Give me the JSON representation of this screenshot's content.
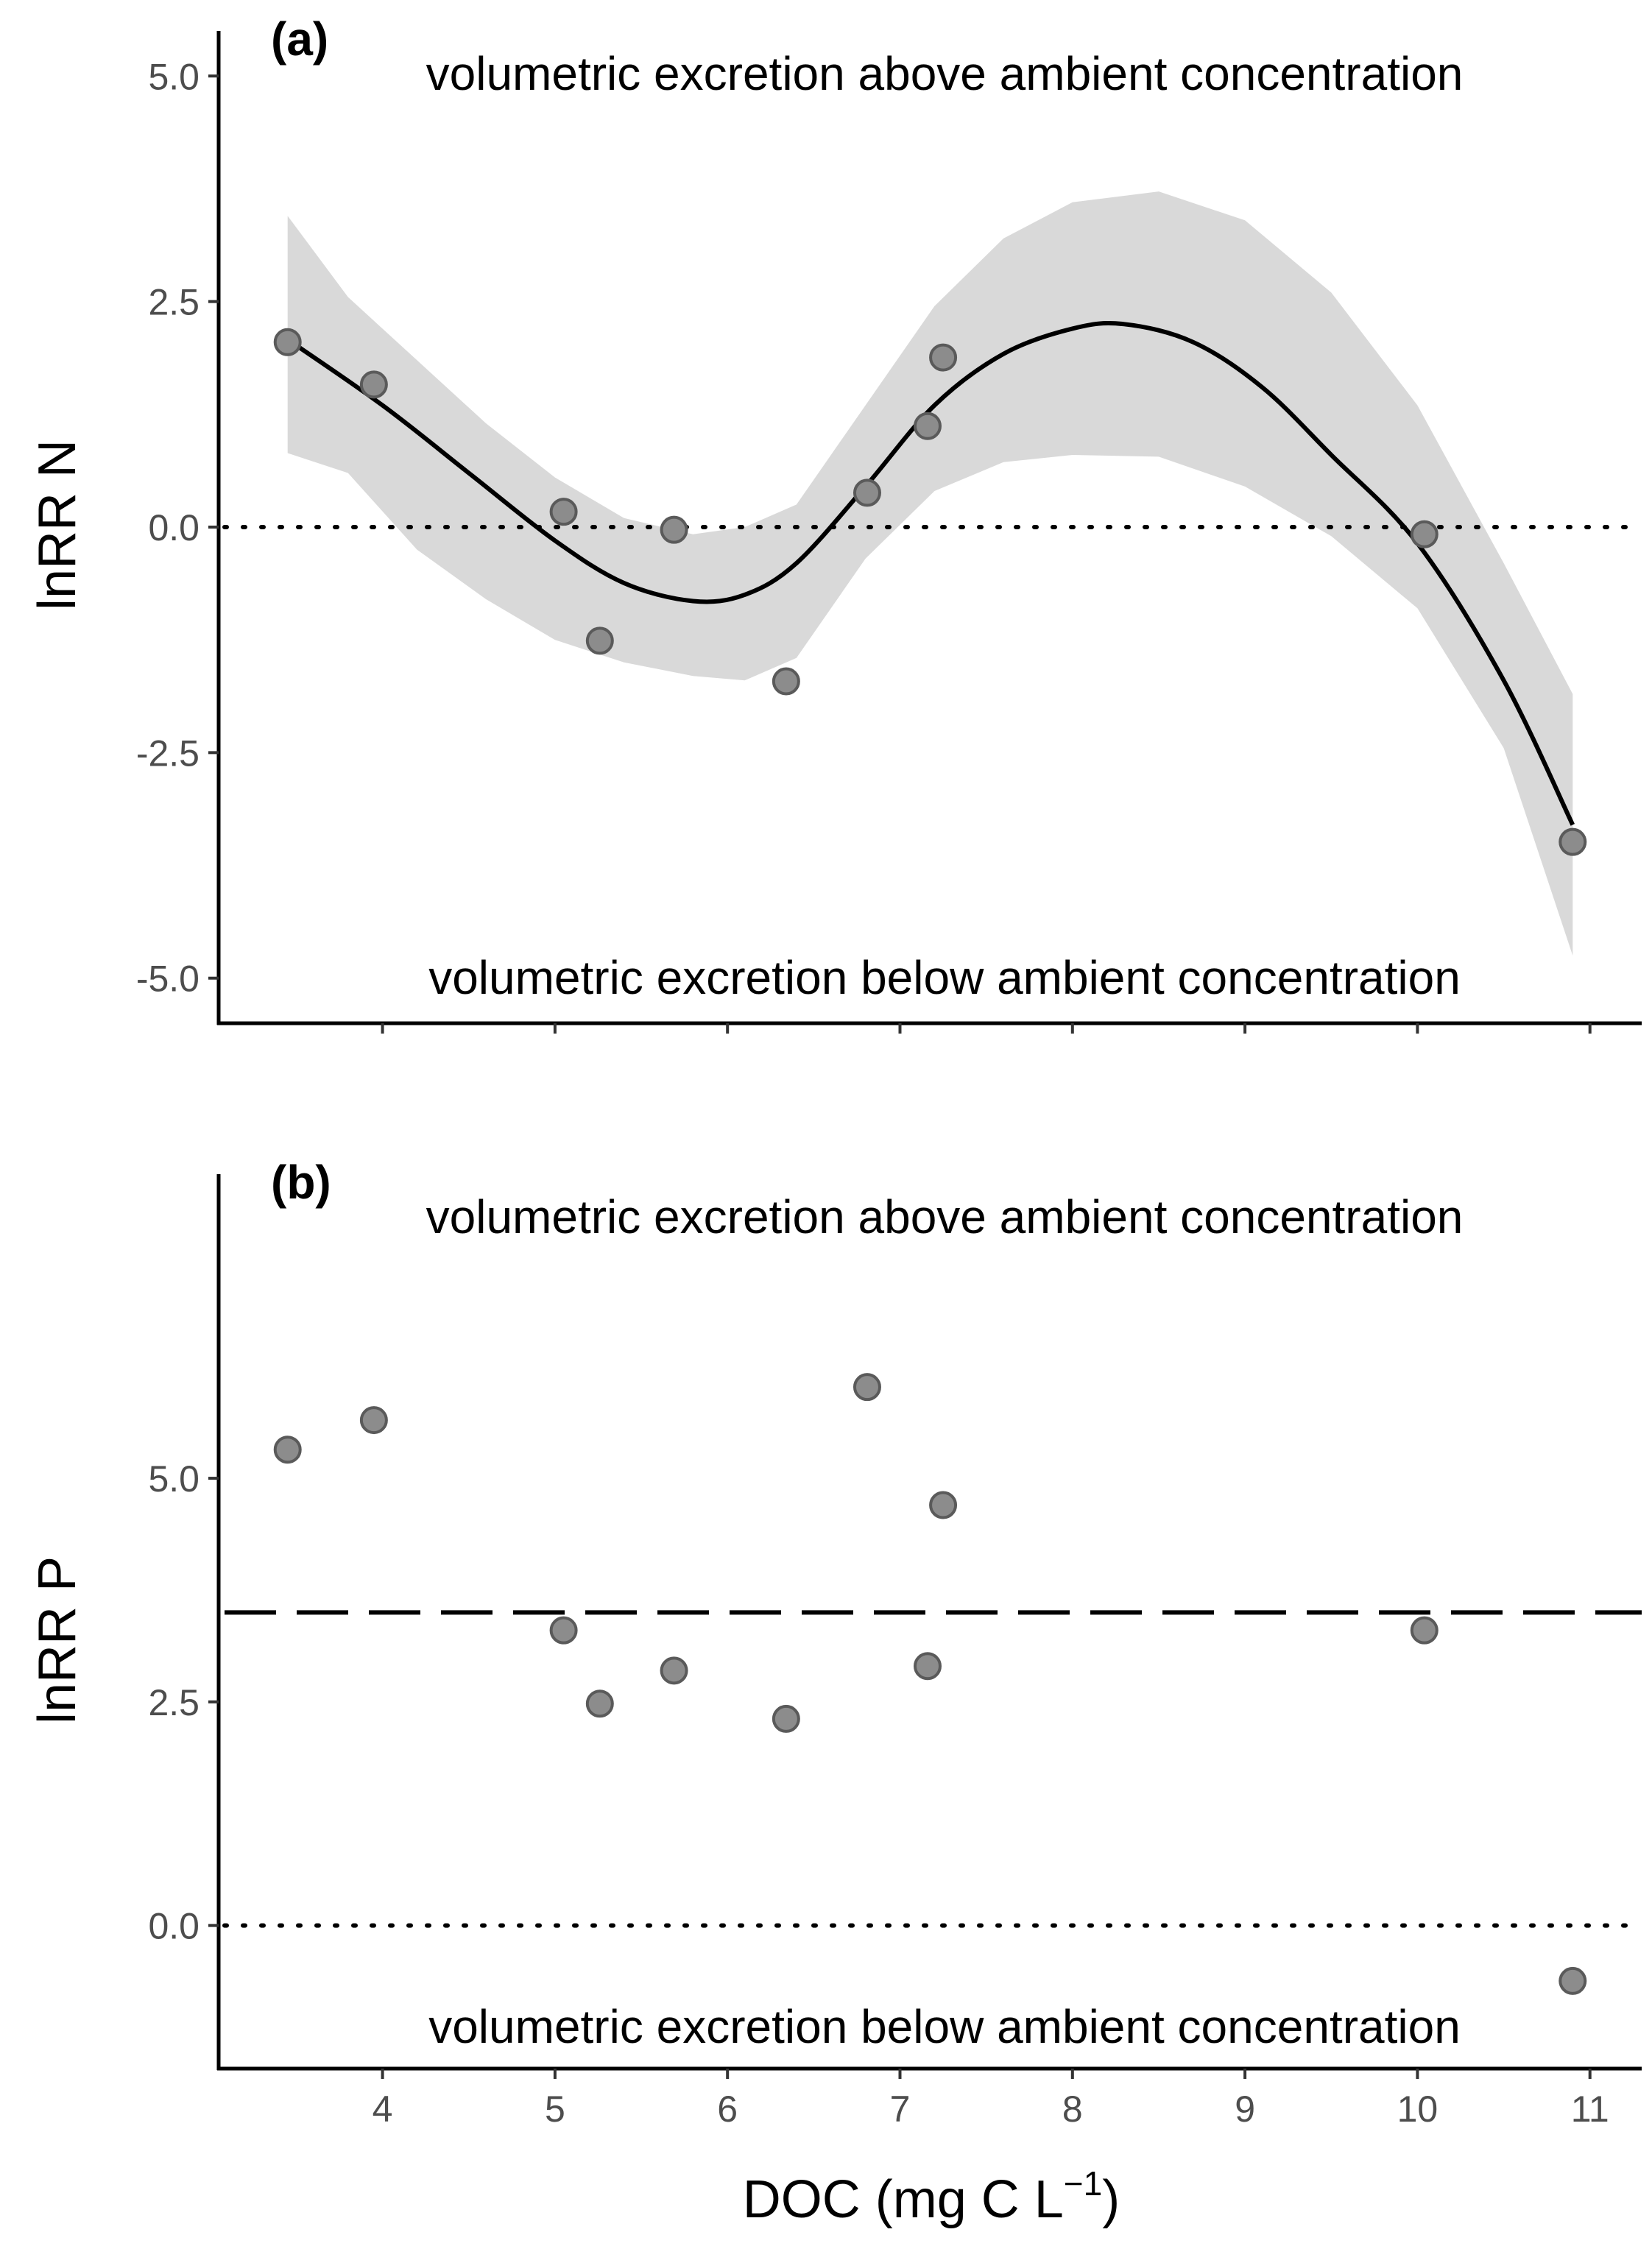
{
  "chart_data": [
    {
      "type": "scatter",
      "panel_label": "(a)",
      "ylabel": "lnRR N",
      "xlabel": "",
      "xlim": [
        3.05,
        11.3
      ],
      "ylim": [
        -5.5,
        5.5
      ],
      "x_ticks": [
        4,
        5,
        6,
        7,
        8,
        9,
        10,
        11
      ],
      "y_ticks": [
        5.0,
        2.5,
        0.0,
        -2.5,
        -5.0
      ],
      "y_tick_labels": [
        "5.0",
        "2.5",
        "0.0",
        "-2.5",
        "-5.0"
      ],
      "show_x_tick_labels": false,
      "annotations": {
        "top": "volumetric excretion above ambient concentration",
        "bottom": "volumetric excretion below ambient concentration"
      },
      "points": [
        {
          "x": 3.45,
          "y": 2.05
        },
        {
          "x": 3.95,
          "y": 1.58
        },
        {
          "x": 5.05,
          "y": 0.17
        },
        {
          "x": 5.26,
          "y": -1.26
        },
        {
          "x": 5.69,
          "y": -0.03
        },
        {
          "x": 6.34,
          "y": -1.71
        },
        {
          "x": 6.81,
          "y": 0.38
        },
        {
          "x": 7.16,
          "y": 1.12
        },
        {
          "x": 7.25,
          "y": 1.88
        },
        {
          "x": 10.04,
          "y": -0.08
        },
        {
          "x": 10.9,
          "y": -3.49
        }
      ],
      "fit_line": {
        "x": [
          3.45,
          4.0,
          4.5,
          5.0,
          5.4,
          5.8,
          6.1,
          6.4,
          6.8,
          7.2,
          7.6,
          8.0,
          8.3,
          8.7,
          9.1,
          9.5,
          10.0,
          10.5,
          10.9
        ],
        "y": [
          2.08,
          1.35,
          0.6,
          -0.15,
          -0.62,
          -0.82,
          -0.75,
          -0.4,
          0.45,
          1.35,
          1.92,
          2.2,
          2.25,
          2.05,
          1.55,
          0.8,
          -0.18,
          -1.7,
          -3.3
        ]
      },
      "confidence_band": {
        "x": [
          3.45,
          3.8,
          4.2,
          4.6,
          5.0,
          5.4,
          5.8,
          6.1,
          6.4,
          6.8,
          7.2,
          7.6,
          8.0,
          8.5,
          9.0,
          9.5,
          10.0,
          10.5,
          10.9
        ],
        "upper": [
          3.45,
          2.55,
          1.85,
          1.15,
          0.55,
          0.1,
          -0.08,
          0.0,
          0.25,
          1.35,
          2.45,
          3.2,
          3.6,
          3.72,
          3.4,
          2.6,
          1.35,
          -0.4,
          -1.85
        ],
        "lower": [
          0.82,
          0.6,
          -0.25,
          -0.8,
          -1.25,
          -1.5,
          -1.65,
          -1.7,
          -1.45,
          -0.35,
          0.4,
          0.72,
          0.8,
          0.78,
          0.45,
          -0.1,
          -0.9,
          -2.45,
          -4.75
        ]
      },
      "reference_lines": [
        {
          "y": 0.0,
          "style": "dotted"
        }
      ],
      "colors": {
        "band": "#d9d9d9",
        "line": "#000000",
        "point_fill": "#8c8c8c",
        "point_edge": "#5a5a5a"
      }
    },
    {
      "type": "scatter",
      "panel_label": "(b)",
      "ylabel": "lnRR P",
      "xlabel": "DOC (mg C L",
      "xlabel_superscript": "−1",
      "xlabel_suffix": ")",
      "xlim": [
        3.05,
        11.3
      ],
      "ylim": [
        -1.6,
        8.4
      ],
      "x_ticks": [
        4,
        5,
        6,
        7,
        8,
        9,
        10,
        11
      ],
      "x_tick_labels": [
        "4",
        "5",
        "6",
        "7",
        "8",
        "9",
        "10",
        "11"
      ],
      "y_ticks": [
        5.0,
        2.5,
        0.0
      ],
      "y_tick_labels": [
        "5.0",
        "2.5",
        "0.0"
      ],
      "show_x_tick_labels": true,
      "annotations": {
        "top": "volumetric excretion above ambient concentration",
        "bottom": "volumetric excretion below ambient concentration"
      },
      "points": [
        {
          "x": 3.45,
          "y": 5.32
        },
        {
          "x": 3.95,
          "y": 5.65
        },
        {
          "x": 5.05,
          "y": 3.3
        },
        {
          "x": 5.26,
          "y": 2.48
        },
        {
          "x": 5.69,
          "y": 2.85
        },
        {
          "x": 6.34,
          "y": 2.31
        },
        {
          "x": 6.81,
          "y": 6.02
        },
        {
          "x": 7.16,
          "y": 2.9
        },
        {
          "x": 7.25,
          "y": 4.7
        },
        {
          "x": 10.04,
          "y": 3.3
        },
        {
          "x": 10.9,
          "y": -0.62
        }
      ],
      "reference_lines": [
        {
          "y": 3.5,
          "style": "dashed"
        },
        {
          "y": 0.0,
          "style": "dotted"
        }
      ],
      "colors": {
        "line": "#000000",
        "point_fill": "#8c8c8c",
        "point_edge": "#5a5a5a"
      }
    }
  ]
}
